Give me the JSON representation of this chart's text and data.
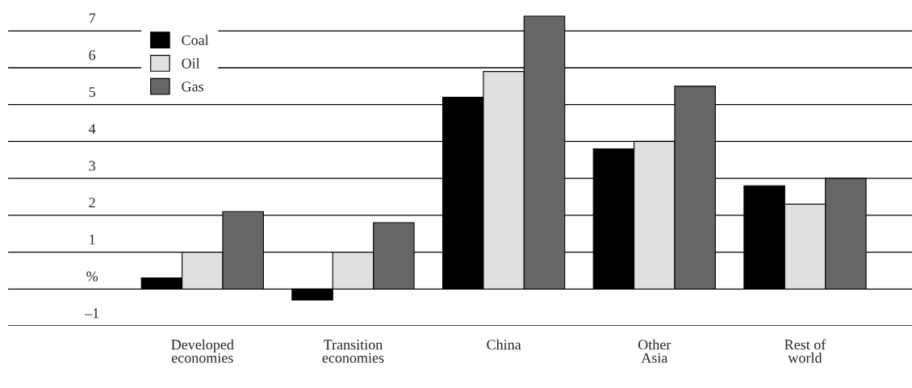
{
  "chart_data": {
    "type": "bar",
    "categories": [
      "Developed\neconomies",
      "Transition\neconomies",
      "China",
      "Other\nAsia",
      "Rest of\nworld"
    ],
    "series": [
      {
        "name": "Coal",
        "color": "#000000",
        "values": [
          0.3,
          -0.3,
          5.2,
          3.8,
          2.8
        ]
      },
      {
        "name": "Oil",
        "color": "#e0e0e0",
        "values": [
          1.0,
          1.0,
          5.9,
          4.0,
          2.3
        ]
      },
      {
        "name": "Gas",
        "color": "#666666",
        "values": [
          2.1,
          1.8,
          7.4,
          5.5,
          3.0
        ]
      }
    ],
    "ylim": [
      -1,
      7.4
    ],
    "yticks": [
      {
        "value": -1,
        "label": "–1"
      },
      {
        "value": 0,
        "label": "%"
      },
      1,
      2,
      3,
      4,
      5,
      6,
      7
    ],
    "grid": "y",
    "legend": "top left"
  }
}
